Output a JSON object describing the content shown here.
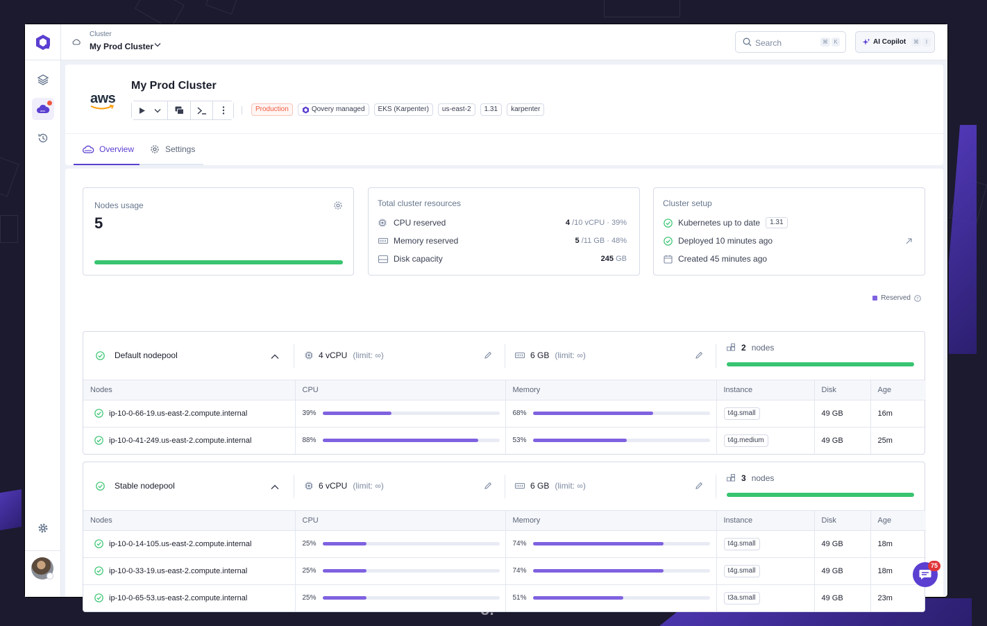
{
  "app": {
    "colors": {
      "accent": "#5b3fd1",
      "bar_fill": "#7f62e0",
      "success": "#38c470",
      "danger": "#f0583d"
    }
  },
  "topbar": {
    "cluster_kicker": "Cluster",
    "cluster_name": "My Prod Cluster",
    "search_placeholder": "Search",
    "search_shortcut": [
      "⌘",
      "K"
    ],
    "copilot_label": "AI Copilot",
    "copilot_shortcut": [
      "⌘",
      "I"
    ]
  },
  "header": {
    "provider_logo": "aws",
    "title": "My Prod Cluster",
    "badges": [
      "Production",
      "Qovery managed",
      "EKS (Karpenter)",
      "us-east-2",
      "1.31",
      "karpenter"
    ],
    "tabs": [
      {
        "label": "Overview",
        "icon": "cloud-icon",
        "active": true
      },
      {
        "label": "Settings",
        "icon": "gear-icon",
        "active": false
      }
    ]
  },
  "nodes_usage": {
    "label": "Nodes usage",
    "value": "5",
    "progress": 1.0
  },
  "total_resources": {
    "label": "Total cluster resources",
    "rows": [
      {
        "label": "CPU reserved",
        "value": "4",
        "total": "/10 vCPU",
        "pct": "39%"
      },
      {
        "label": "Memory reserved",
        "value": "5",
        "total": "/11 GB",
        "pct": "48%"
      },
      {
        "label": "Disk capacity",
        "value": "245",
        "total": "GB",
        "pct": ""
      }
    ]
  },
  "cluster_setup": {
    "label": "Cluster setup",
    "rows": [
      {
        "label": "Kubernetes up to date",
        "badge": "1.31"
      },
      {
        "label": "Deployed 10 minutes ago"
      },
      {
        "label": "Created 45 minutes ago"
      }
    ]
  },
  "legend": {
    "label": "Reserved"
  },
  "columns": [
    "Nodes",
    "CPU",
    "Memory",
    "Instance",
    "Disk",
    "Age"
  ],
  "nodepools": [
    {
      "name": "Default nodepool",
      "cpu": "4 vCPU",
      "cpu_limit": "(limit: ∞)",
      "memory": "6 GB",
      "memory_limit": "(limit: ∞)",
      "nodes_count": "2",
      "nodes_unit": "nodes",
      "progress": 1.0,
      "nodes": [
        {
          "name": "ip-10-0-66-19.us-east-2.compute.internal",
          "cpu_pct": "39%",
          "cpu": 39,
          "mem_pct": "68%",
          "mem": 68,
          "instance": "t4g.small",
          "disk": "49 GB",
          "age": "16m"
        },
        {
          "name": "ip-10-0-41-249.us-east-2.compute.internal",
          "cpu_pct": "88%",
          "cpu": 88,
          "mem_pct": "53%",
          "mem": 53,
          "instance": "t4g.medium",
          "disk": "49 GB",
          "age": "25m"
        }
      ]
    },
    {
      "name": "Stable nodepool",
      "cpu": "6 vCPU",
      "cpu_limit": "(limit: ∞)",
      "memory": "6 GB",
      "memory_limit": "(limit: ∞)",
      "nodes_count": "3",
      "nodes_unit": "nodes",
      "progress": 1.0,
      "nodes": [
        {
          "name": "ip-10-0-14-105.us-east-2.compute.internal",
          "cpu_pct": "25%",
          "cpu": 25,
          "mem_pct": "74%",
          "mem": 74,
          "instance": "t4g.small",
          "disk": "49 GB",
          "age": "18m"
        },
        {
          "name": "ip-10-0-33-19.us-east-2.compute.internal",
          "cpu_pct": "25%",
          "cpu": 25,
          "mem_pct": "74%",
          "mem": 74,
          "instance": "t4g.small",
          "disk": "49 GB",
          "age": "18m"
        },
        {
          "name": "ip-10-0-65-53.us-east-2.compute.internal",
          "cpu_pct": "25%",
          "cpu": 25,
          "mem_pct": "51%",
          "mem": 51,
          "instance": "t3a.small",
          "disk": "49 GB",
          "age": "23m"
        }
      ]
    }
  ],
  "chat": {
    "unread": "75"
  }
}
